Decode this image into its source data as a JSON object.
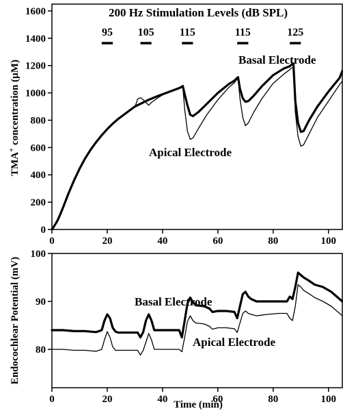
{
  "chart_data": [
    {
      "type": "line",
      "panel": "top",
      "ylabel_main": "TMA",
      "ylabel_sup": "+",
      "ylabel_rest": " concentration (µM)",
      "xlim": [
        0,
        105
      ],
      "ylim": [
        0,
        1650
      ],
      "xticks": [
        "0",
        "20",
        "40",
        "60",
        "80",
        "100"
      ],
      "yticks": [
        "0",
        "200",
        "400",
        "600",
        "800",
        "1000",
        "1200",
        "1400",
        "1600"
      ],
      "stimulation_title": "200 Hz Stimulation Levels (dB SPL)",
      "stimulation_levels": [
        {
          "label": "95",
          "start": 18,
          "end": 22
        },
        {
          "label": "105",
          "start": 32,
          "end": 36
        },
        {
          "label": "115",
          "start": 47,
          "end": 51
        },
        {
          "label": "115",
          "start": 67,
          "end": 71
        },
        {
          "label": "125",
          "start": 86,
          "end": 90
        }
      ],
      "annotations": {
        "basal": "Basal Electrode",
        "apical": "Apical Electrode"
      },
      "series": [
        {
          "name": "Basal Electrode",
          "x": [
            0,
            1,
            2,
            3,
            4,
            6,
            8,
            10,
            12,
            14,
            16,
            18,
            20,
            22,
            24,
            26,
            28,
            30,
            32,
            33,
            34,
            35,
            36,
            38,
            40,
            42,
            44,
            46,
            46.5,
            47,
            47.3,
            48,
            49,
            50,
            51,
            53,
            56,
            60,
            64,
            66,
            66.5,
            67,
            67.3,
            68,
            69,
            70,
            71,
            73,
            76,
            80,
            84,
            86,
            86.5,
            87,
            87.3,
            88,
            89,
            90,
            91,
            93,
            96,
            100,
            104,
            105
          ],
          "y": [
            0,
            30,
            65,
            110,
            160,
            265,
            360,
            445,
            520,
            585,
            640,
            690,
            735,
            775,
            810,
            840,
            870,
            900,
            920,
            930,
            940,
            950,
            958,
            975,
            990,
            1005,
            1020,
            1035,
            1040,
            1045,
            1050,
            990,
            910,
            840,
            830,
            860,
            920,
            1000,
            1065,
            1090,
            1100,
            1110,
            1115,
            1030,
            960,
            935,
            940,
            980,
            1050,
            1130,
            1180,
            1195,
            1205,
            1210,
            1215,
            940,
            780,
            715,
            720,
            800,
            900,
            1010,
            1110,
            1160
          ]
        },
        {
          "name": "Apical Electrode",
          "x": [
            0,
            1,
            2,
            3,
            4,
            6,
            8,
            10,
            12,
            14,
            16,
            18,
            20,
            22,
            24,
            26,
            28,
            30,
            31,
            32,
            33,
            34,
            35,
            36,
            38,
            40,
            42,
            44,
            46,
            46.5,
            47,
            47.3,
            48,
            49,
            50,
            51,
            53,
            56,
            60,
            64,
            66,
            66.5,
            67,
            67.3,
            68,
            69,
            70,
            71,
            73,
            76,
            80,
            84,
            86,
            86.5,
            87,
            87.3,
            88,
            89,
            90,
            91,
            93,
            96,
            100,
            104,
            105
          ],
          "y": [
            0,
            25,
            55,
            100,
            150,
            255,
            350,
            440,
            515,
            580,
            640,
            690,
            735,
            775,
            810,
            840,
            870,
            895,
            955,
            965,
            950,
            930,
            910,
            930,
            960,
            985,
            1005,
            1020,
            1030,
            1035,
            1040,
            1045,
            880,
            720,
            660,
            670,
            740,
            840,
            950,
            1040,
            1075,
            1090,
            1100,
            1105,
            960,
            820,
            760,
            780,
            860,
            960,
            1070,
            1140,
            1170,
            1180,
            1185,
            1190,
            860,
            680,
            610,
            620,
            700,
            820,
            940,
            1060,
            1085
          ]
        }
      ]
    },
    {
      "type": "line",
      "panel": "bottom",
      "xlabel": "Time (min)",
      "ylabel": "Endocochlear Potential (mV)",
      "xlim": [
        0,
        105
      ],
      "ylim": [
        72,
        100
      ],
      "xticks": [
        "0",
        "20",
        "40",
        "60",
        "80",
        "100"
      ],
      "yticks": [
        "80",
        "90",
        "100"
      ],
      "annotations": {
        "basal": "Basal Electrode",
        "apical": "Apical Electrode"
      },
      "series": [
        {
          "name": "Basal Electrode",
          "x": [
            0,
            4,
            8,
            12,
            16,
            18,
            19,
            20,
            21,
            22,
            23,
            24,
            28,
            31,
            32,
            33,
            34,
            35,
            36,
            37,
            38,
            42,
            46,
            47,
            48,
            49,
            50,
            51,
            52,
            55,
            57,
            58,
            60,
            63,
            66,
            67,
            68,
            69,
            70,
            71,
            72,
            74,
            78,
            82,
            85,
            86,
            87,
            88,
            89,
            90,
            91,
            93,
            95,
            98,
            101,
            103,
            105
          ],
          "y": [
            84,
            84,
            83.8,
            83.8,
            83.6,
            84,
            86,
            87.3,
            86.5,
            84.5,
            83.7,
            83.5,
            83.5,
            83.5,
            82.5,
            83.6,
            86,
            87.3,
            86,
            84,
            84,
            84,
            84,
            82.5,
            86,
            89.5,
            90.8,
            89.8,
            89.2,
            89,
            88.5,
            87.8,
            88,
            88,
            87.8,
            86.5,
            89,
            91.5,
            92,
            91,
            90.5,
            90,
            90,
            90,
            90,
            91,
            90.5,
            93,
            96,
            95.5,
            95,
            94.3,
            93.5,
            93,
            92,
            91,
            90
          ]
        },
        {
          "name": "Apical Electrode",
          "x": [
            0,
            4,
            8,
            12,
            16,
            18,
            19,
            20,
            21,
            22,
            23,
            24,
            28,
            31,
            32,
            33,
            34,
            35,
            36,
            37,
            38,
            42,
            46,
            47,
            48,
            49,
            50,
            51,
            52,
            55,
            57,
            58,
            60,
            63,
            66,
            67,
            68,
            69,
            70,
            71,
            72,
            74,
            78,
            82,
            85,
            86,
            87,
            88,
            89,
            90,
            91,
            93,
            95,
            98,
            101,
            103,
            105
          ],
          "y": [
            80,
            80,
            79.8,
            79.8,
            79.6,
            80,
            82,
            83.7,
            82.5,
            80.5,
            79.8,
            79.8,
            79.8,
            79.8,
            78.8,
            79.8,
            81.5,
            83.3,
            82,
            80,
            80,
            80,
            80,
            79.5,
            82.5,
            85.8,
            87,
            86,
            85.5,
            85.3,
            84.8,
            84.2,
            84.5,
            84.5,
            84.3,
            83.5,
            85.5,
            87.5,
            88,
            87.5,
            87.3,
            87,
            87.3,
            87.5,
            87.5,
            86.5,
            86,
            89,
            93.5,
            93,
            92.3,
            91.6,
            90.8,
            90,
            89,
            88,
            87
          ]
        }
      ]
    }
  ]
}
